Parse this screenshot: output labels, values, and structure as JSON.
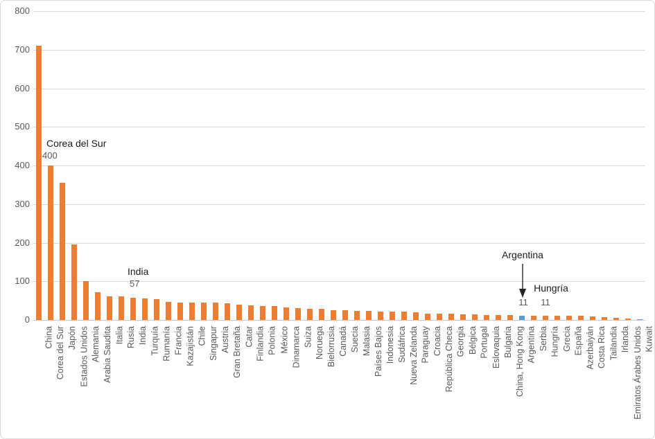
{
  "chart_data": {
    "type": "bar",
    "title": "",
    "xlabel": "",
    "ylabel": "",
    "ylim": [
      0,
      800
    ],
    "yticks": [
      0,
      100,
      200,
      300,
      400,
      500,
      600,
      700,
      800
    ],
    "grid": true,
    "legend": false,
    "bar_color": "#ED7D31",
    "highlight_color": "#5B9BD5",
    "highlight_category": "Argentina",
    "categories": [
      "China",
      "Corea del Sur",
      "Japón",
      "Estados Unidos",
      "Alemania",
      "Arabia Saudita",
      "Italia",
      "Rusia",
      "India",
      "Turquía",
      "Rumanía",
      "Francia",
      "Kazajistán",
      "Chile",
      "Singapur",
      "Austria",
      "Gran Bretaña",
      "Catar",
      "Finlandia",
      "Polonia",
      "México",
      "Dinamarca",
      "Suiza",
      "Noruega",
      "Bielorrusia",
      "Canadá",
      "Suecia",
      "Malasia",
      "Países Bajos",
      "Indonesia",
      "Sudáfrica",
      "Nueva Zelanda",
      "Paraguay",
      "Croacia",
      "República Checa",
      "Georgia",
      "Bélgica",
      "Portugal",
      "Eslovaquia",
      "Bulgaria",
      "China, Hong Kong",
      "Argentina",
      "Serbia",
      "Hungría",
      "Grecia",
      "España",
      "Azerbaiyán",
      "Costa Rica",
      "Tailandia",
      "Irlanda",
      "Emiratos Árabes Unidos",
      "Kuwait"
    ],
    "values": [
      710,
      400,
      355,
      196,
      100,
      72,
      61,
      61,
      57,
      55,
      53,
      47,
      45,
      45,
      44,
      44,
      43,
      39,
      38,
      35,
      35,
      32,
      31,
      28,
      28,
      25,
      25,
      24,
      23,
      22,
      21,
      21,
      19,
      17,
      17,
      16,
      15,
      14,
      13,
      13,
      12,
      11,
      11,
      11,
      10,
      10,
      10,
      9,
      8,
      5,
      4,
      2
    ],
    "annotations": {
      "korea": {
        "label": "Corea del Sur",
        "value": "400"
      },
      "india": {
        "label": "India",
        "value": "57"
      },
      "argentina": {
        "label": "Argentina",
        "value": "11",
        "arrow": "down"
      },
      "hungary": {
        "label": "Hungría",
        "value": "11"
      }
    }
  },
  "colors": {
    "gridline": "#D9D9D9",
    "axis_text": "#595959",
    "annotation_text": "#1a1a1a",
    "background": "#ffffff"
  }
}
